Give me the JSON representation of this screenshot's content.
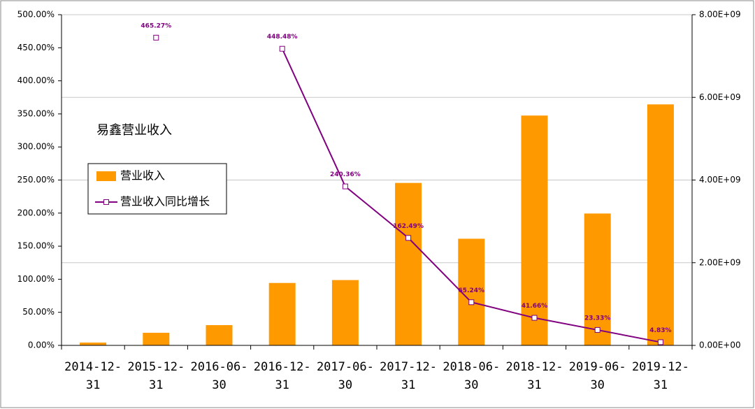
{
  "chart_data": {
    "type": "combo",
    "title": "易鑫营业收入",
    "categories": [
      "2014-12-31",
      "2015-12-31",
      "2016-06-30",
      "2016-12-31",
      "2017-06-30",
      "2017-12-31",
      "2018-06-30",
      "2018-12-31",
      "2019-06-30",
      "2019-12-31"
    ],
    "series": [
      {
        "name": "营业收入",
        "type": "bar",
        "axis": "y2",
        "color": "#ff9900",
        "values": [
          68000000,
          305000000,
          490000000,
          1510000000,
          1580000000,
          3930000000,
          2580000000,
          5560000000,
          3190000000,
          5830000000
        ]
      },
      {
        "name": "营业收入同比增长",
        "type": "line",
        "color": "#800080",
        "values": [
          null,
          465.27,
          null,
          448.48,
          240.36,
          162.49,
          65.24,
          41.66,
          23.33,
          4.83
        ],
        "value_labels": [
          null,
          "465.27%",
          null,
          "448.48%",
          "240.36%",
          "162.49%",
          "65.24%",
          "41.66%",
          "23.33%",
          "4.83%"
        ]
      }
    ],
    "ylim": [
      0,
      500
    ],
    "yticks": [
      {
        "value": 0,
        "label": "0.00%"
      },
      {
        "value": 50,
        "label": "50.00%"
      },
      {
        "value": 100,
        "label": "100.00%"
      },
      {
        "value": 150,
        "label": "150.00%"
      },
      {
        "value": 200,
        "label": "200.00%"
      },
      {
        "value": 250,
        "label": "250.00%"
      },
      {
        "value": 300,
        "label": "300.00%"
      },
      {
        "value": 350,
        "label": "350.00%"
      },
      {
        "value": 400,
        "label": "400.00%"
      },
      {
        "value": 450,
        "label": "450.00%"
      },
      {
        "value": 500,
        "label": "500.00%"
      }
    ],
    "y2lim": [
      0,
      8000000000
    ],
    "y2ticks": [
      {
        "value": 0,
        "label": "0.00E+00"
      },
      {
        "value": 2000000000,
        "label": "2.00E+09"
      },
      {
        "value": 4000000000,
        "label": "4.00E+09"
      },
      {
        "value": 6000000000,
        "label": "6.00E+09"
      },
      {
        "value": 8000000000,
        "label": "8.00E+09"
      }
    ],
    "grid": "y2"
  }
}
